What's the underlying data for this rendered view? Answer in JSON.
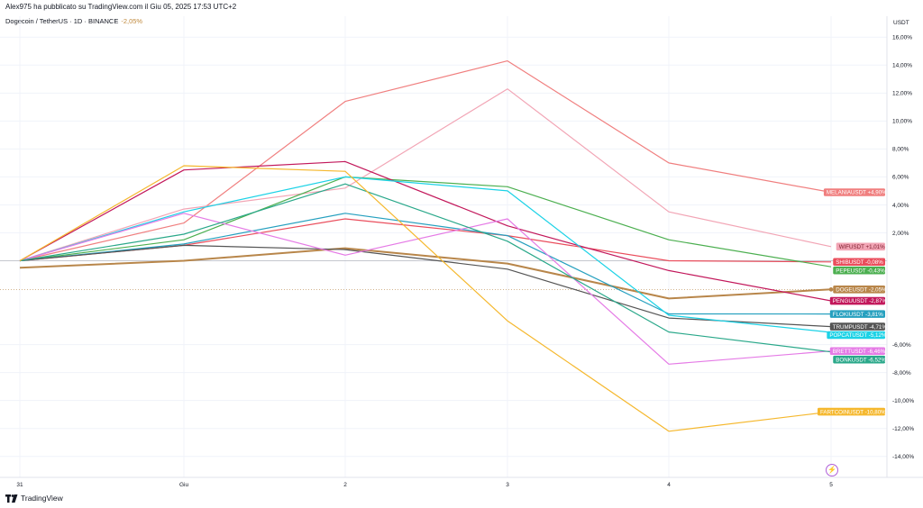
{
  "header": {
    "published": "Alex975 ha pubblicato su TradingView.com il Giu 05, 2025 17:53 UTC+2",
    "symbol": "Dogecoin / TetherUS · 1D · BINANCE",
    "symbol_change": "-2,05%"
  },
  "footer": {
    "brand": "TradingView"
  },
  "icons": {
    "brand_logo": "tradingview-logo-icon",
    "bolt": "lightning-icon"
  },
  "chart_data": {
    "type": "line",
    "y_unit": "USDT",
    "x_categories": [
      "31",
      "Giu",
      "2",
      "3",
      "4",
      "5"
    ],
    "y_ticks": [
      "16,00%",
      "14,00%",
      "12,00%",
      "10,00%",
      "8,00%",
      "6,00%",
      "4,00%",
      "2,00%",
      "-6,00%",
      "-8,00%",
      "-10,00%",
      "-12,00%",
      "-14,00%"
    ],
    "y_tick_values": [
      16,
      14,
      12,
      10,
      8,
      6,
      4,
      2,
      -6,
      -8,
      -10,
      -12,
      -14
    ],
    "ylim": [
      -15.5,
      17.5
    ],
    "grid": true,
    "series": [
      {
        "name": "MELANIAUSDT",
        "label": "+4,90%",
        "color": "#f07f7f",
        "values": [
          0,
          2.7,
          11.4,
          14.3,
          7.0,
          4.9
        ]
      },
      {
        "name": "WIFUSDT",
        "label": "+1,01%",
        "color": "#f2a5b5",
        "values": [
          0,
          3.7,
          5.2,
          12.3,
          3.5,
          1.01
        ]
      },
      {
        "name": "SHIBUSDT",
        "label": "-0,08%",
        "color": "#ea4d5c",
        "values": [
          0,
          1.1,
          3.0,
          1.8,
          0.0,
          -0.08
        ]
      },
      {
        "name": "PEPEUSDT",
        "label": "-0,43%",
        "color": "#4caf50",
        "values": [
          0,
          1.5,
          6.0,
          5.3,
          1.5,
          -0.43
        ]
      },
      {
        "name": "DOGEUSDT",
        "label": "-2,05%",
        "color": "#b8864a",
        "values": [
          -0.5,
          0.0,
          0.9,
          -0.2,
          -2.7,
          -2.05
        ]
      },
      {
        "name": "PENGUUSDT",
        "label": "-2,87%",
        "color": "#c2185b",
        "values": [
          0,
          6.5,
          7.1,
          2.5,
          -0.7,
          -2.87
        ]
      },
      {
        "name": "FLOKIUSDT",
        "label": "-3,81%",
        "color": "#26a0bf",
        "values": [
          0,
          1.2,
          3.4,
          1.8,
          -3.8,
          -3.81
        ]
      },
      {
        "name": "TRUMPUSDT",
        "label": "-4,71%",
        "color": "#555555",
        "values": [
          0,
          1.1,
          0.8,
          -0.6,
          -4.1,
          -4.71
        ]
      },
      {
        "name": "POPCATUSDT",
        "label": "-5,12%",
        "color": "#1cd2e6",
        "values": [
          0,
          3.5,
          6.0,
          5.0,
          -3.9,
          -5.12
        ]
      },
      {
        "name": "BRETTUSDT",
        "label": "-6,46%",
        "color": "#e57be6",
        "values": [
          0,
          3.4,
          0.4,
          3.0,
          -7.4,
          -6.46
        ]
      },
      {
        "name": "BONKUSDT",
        "label": "-6,52%",
        "color": "#2aa88a",
        "values": [
          0,
          1.9,
          5.5,
          1.4,
          -5.1,
          -6.52
        ]
      },
      {
        "name": "FARTCOINUSDT",
        "label": "-10,80%",
        "color": "#f5b82e",
        "values": [
          0,
          6.8,
          6.4,
          -4.3,
          -12.2,
          -10.8
        ]
      }
    ]
  }
}
